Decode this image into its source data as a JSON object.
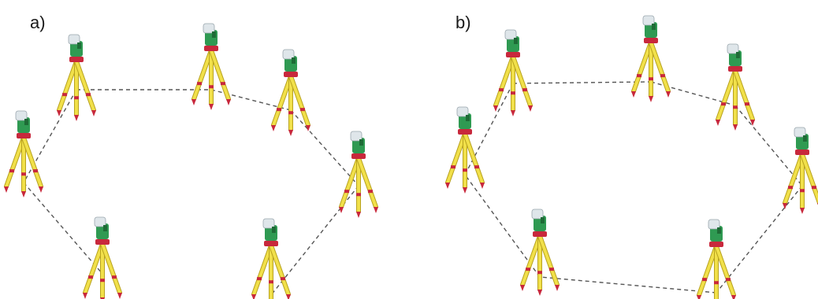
{
  "panels": [
    {
      "label": "a)",
      "instruments": [
        {
          "id": "a1"
        },
        {
          "id": "a2"
        },
        {
          "id": "a3"
        },
        {
          "id": "a4"
        },
        {
          "id": "a5"
        },
        {
          "id": "a6"
        },
        {
          "id": "a7"
        },
        {
          "id": "a8"
        }
      ],
      "connections": [
        [
          "a1",
          "a2"
        ],
        [
          "a2",
          "a3"
        ],
        [
          "a3",
          "a4"
        ],
        [
          "a4",
          "a5"
        ],
        [
          "a5",
          "a6"
        ],
        [
          "a1",
          "a8"
        ],
        [
          "a8",
          "a7"
        ]
      ]
    },
    {
      "label": "b)",
      "instruments": [
        {
          "id": "b1"
        },
        {
          "id": "b2"
        },
        {
          "id": "b3"
        },
        {
          "id": "b4"
        },
        {
          "id": "b5"
        },
        {
          "id": "b6"
        },
        {
          "id": "b7"
        },
        {
          "id": "b8"
        }
      ],
      "connections": [
        [
          "b1",
          "b2"
        ],
        [
          "b2",
          "b3"
        ],
        [
          "b3",
          "b4"
        ],
        [
          "b4",
          "b5"
        ],
        [
          "b5",
          "b6"
        ],
        [
          "b6",
          "b7"
        ],
        [
          "b7",
          "b8"
        ],
        [
          "b8",
          "b1"
        ]
      ]
    }
  ],
  "colors": {
    "tripod_leg": "#f1e04a",
    "tripod_leg_edge": "#b8a21e",
    "tripod_head": "#c8283c",
    "foot": "#c8283c",
    "instrument_body": "#2f9a52",
    "instrument_top": "#dfe6ea",
    "dashed_line": "#555555"
  }
}
